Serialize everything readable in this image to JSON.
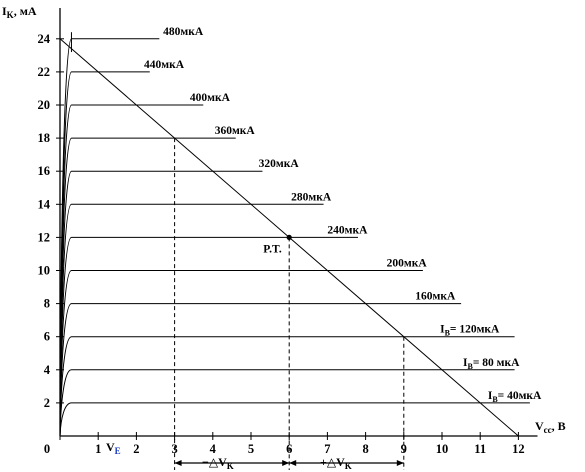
{
  "chart_data": {
    "type": "line",
    "title": "",
    "xlabel": "Vcc, B",
    "ylabel": "IK, мА",
    "xlim": [
      0,
      12
    ],
    "ylim": [
      0,
      24
    ],
    "x_ticks": [
      "0",
      "1",
      "2",
      "3",
      "4",
      "5",
      "6",
      "7",
      "8",
      "9",
      "10",
      "11",
      "12"
    ],
    "y_ticks": [
      "2",
      "4",
      "6",
      "8",
      "10",
      "12",
      "14",
      "16",
      "18",
      "20",
      "22",
      "24"
    ],
    "series": [
      {
        "name": "40мкА",
        "base_label": "",
        "label_prefix": "IB= ",
        "label_value": "40мкА",
        "ic": 2,
        "x_end": 12.3,
        "label_x": 11.2
      },
      {
        "name": "80 мкА",
        "base_label": "",
        "label_prefix": "IB= ",
        "label_value": "80 мкА",
        "ic": 4,
        "x_end": 11.9,
        "label_x": 10.55
      },
      {
        "name": "120мкА",
        "base_label": "",
        "label_prefix": "IB= ",
        "label_value": "120мкА",
        "ic": 6,
        "x_end": 11.9,
        "label_x": 9.95
      },
      {
        "name": "160мкА",
        "label": "160мкА",
        "ic": 8,
        "x_end": 10.5,
        "label_x": 9.3
      },
      {
        "name": "200мкА",
        "label": "200мкА",
        "ic": 10,
        "x_end": 9.5,
        "label_x": 8.55
      },
      {
        "name": "240мкА",
        "label": "240мкА",
        "ic": 12,
        "x_end": 7.8,
        "label_x": 7.0
      },
      {
        "name": "280мкА",
        "label": "280мкА",
        "ic": 14,
        "x_end": 6.9,
        "label_x": 6.05
      },
      {
        "name": "320мкА",
        "label": "320мкА",
        "ic": 16,
        "x_end": 5.3,
        "label_x": 5.2
      },
      {
        "name": "360мкА",
        "label": "360мкА",
        "ic": 18,
        "x_end": 4.6,
        "label_x": 4.05
      },
      {
        "name": "400мкА",
        "label": "400мкА",
        "ic": 20,
        "x_end": 3.75,
        "label_x": 3.4
      },
      {
        "name": "440мкА",
        "label": "440мкА",
        "ic": 22,
        "x_end": 2.35,
        "label_x": 2.2
      },
      {
        "name": "480мкА",
        "label": "480мкА",
        "ic": 24,
        "x_end": 2.6,
        "label_x": 2.7
      }
    ],
    "load_line": {
      "x": [
        0,
        12
      ],
      "y": [
        24,
        0
      ]
    },
    "operating_point": {
      "label": "P.T.",
      "x": 6,
      "y": 12
    },
    "vertical_markers": [
      3,
      6,
      9
    ],
    "vertical_marker_y": [
      18,
      12,
      6
    ],
    "ve_label": "VE",
    "delta_left_label": "−△VK",
    "delta_right_label": "+△VK",
    "grid": false,
    "legend": "none"
  }
}
